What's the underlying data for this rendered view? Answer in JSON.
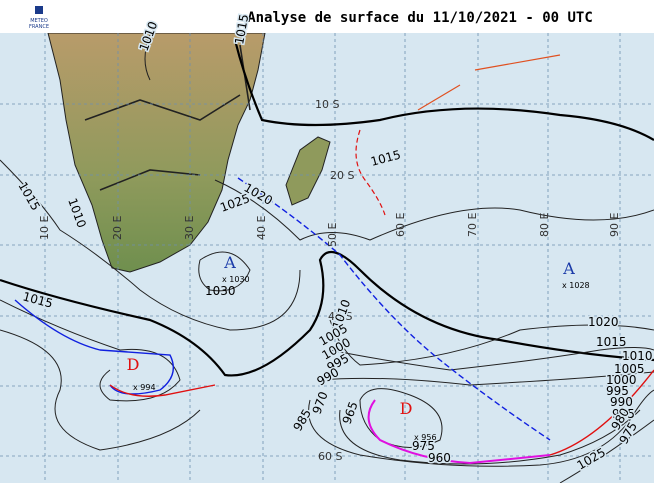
{
  "header": {
    "title": "Analyse de surface du 11/10/2021 - 00 UTC",
    "logo": [
      "METEO",
      "FRANCE"
    ]
  },
  "grid": {
    "latitudes": [
      "10 S",
      "20 S",
      "40 S",
      "60 S"
    ],
    "longitudes": [
      "10 E",
      "20 E",
      "30 E",
      "40 E",
      "50 E",
      "60 E",
      "70 E",
      "80 E",
      "90 E"
    ]
  },
  "isobar_labels": [
    "1010",
    "1015",
    "1015",
    "1010",
    "1015",
    "1020",
    "1025",
    "1015",
    "1010",
    "1005",
    "1000",
    "995",
    "990",
    "985",
    "970",
    "965",
    "960",
    "975",
    "1025",
    "1020",
    "1015",
    "1010",
    "1005",
    "1000",
    "995",
    "990",
    "985",
    "980",
    "975"
  ],
  "centers": [
    {
      "symbol": "A",
      "label": "x 1030",
      "value": "1030"
    },
    {
      "symbol": "A",
      "label": "x 1028"
    },
    {
      "symbol": "D",
      "label": "x 994"
    },
    {
      "symbol": "D",
      "label": "x 956"
    }
  ]
}
